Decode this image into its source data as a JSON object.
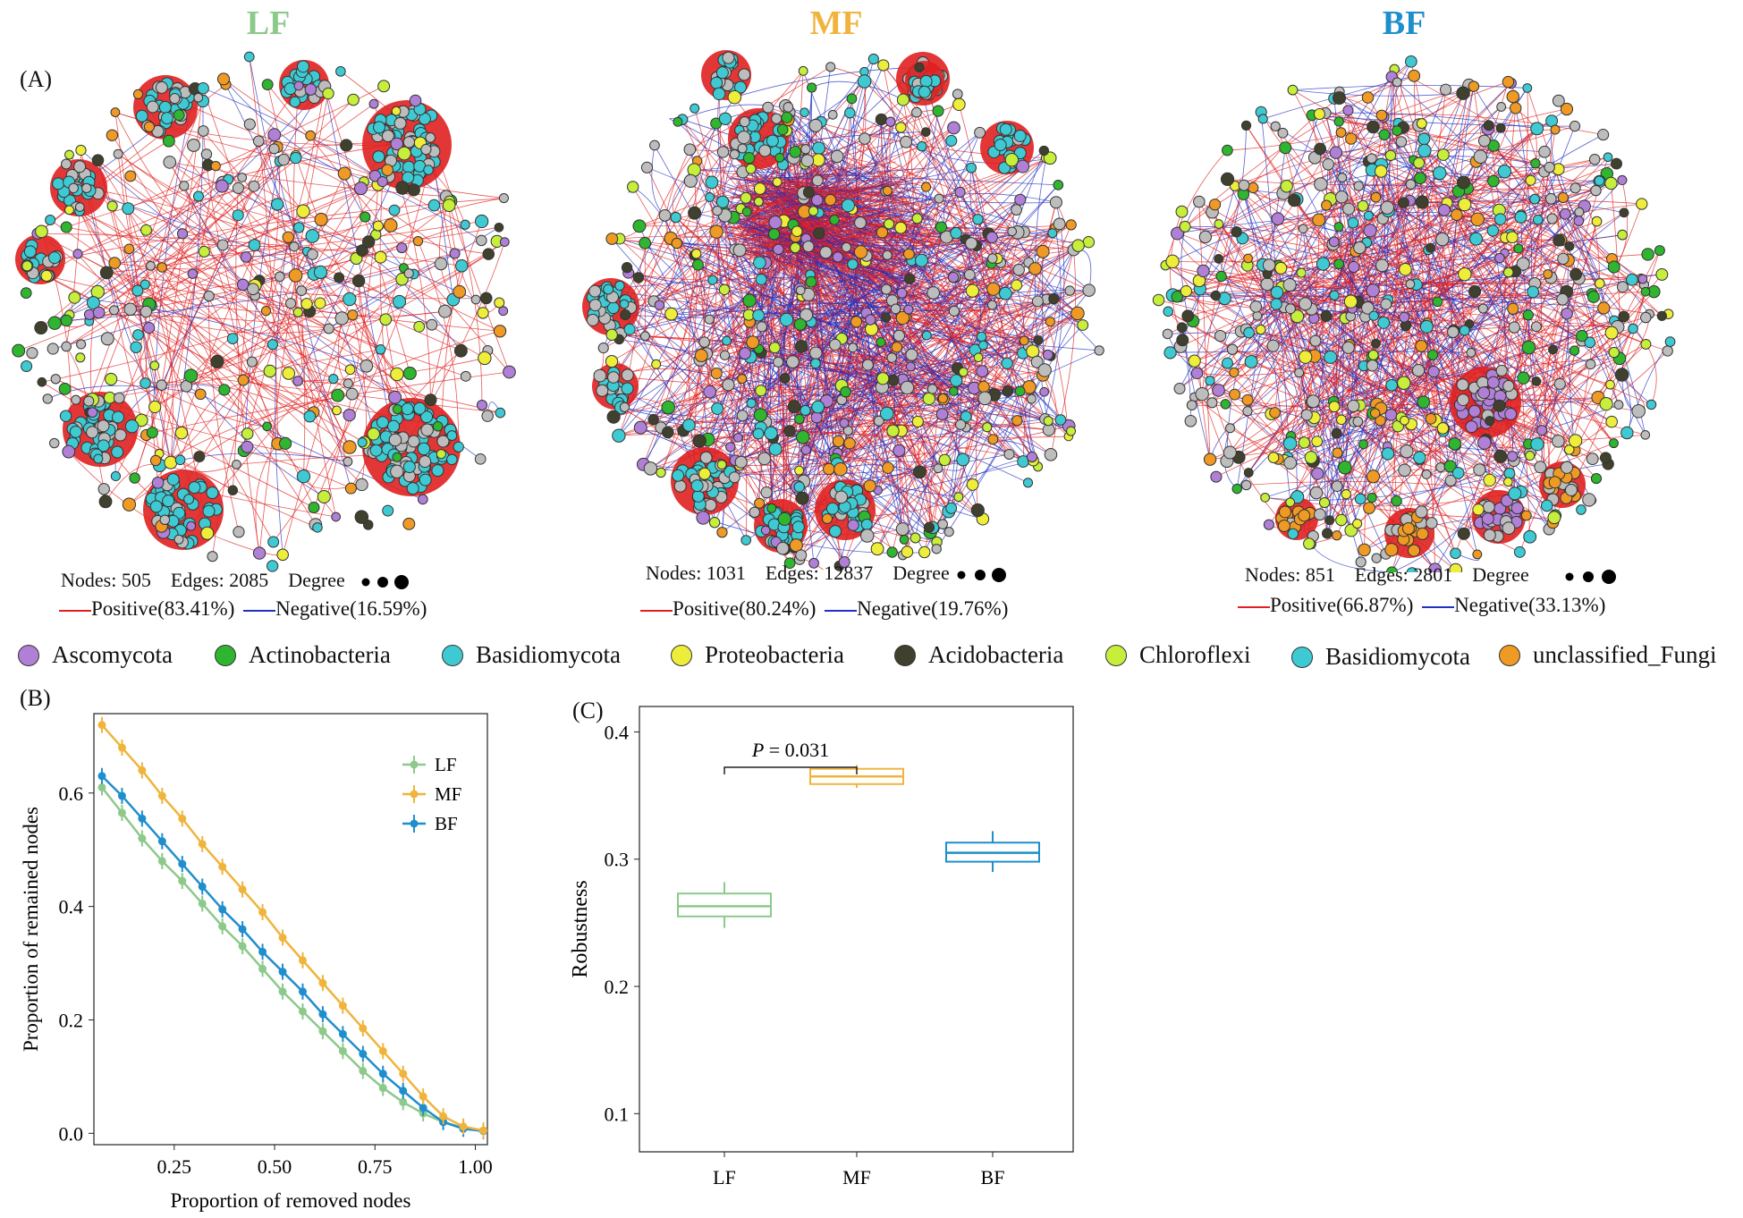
{
  "panels": {
    "a_label": "(A)",
    "b_label": "(B)",
    "c_label": "(C)"
  },
  "colors": {
    "LF": "#8cc98a",
    "MF": "#f0b43c",
    "BF": "#1f8ecd",
    "positive": "#e02020",
    "negative": "#2030c0"
  },
  "networks": [
    {
      "key": "lf",
      "title": "LF",
      "nodes_label": "Nodes: 505",
      "edges_label": "Edges: 2085",
      "degree_label": "Degree",
      "positive_label": "Positive(83.41%)",
      "negative_label": "Negative(16.59%)",
      "nodes": 505,
      "edges": 2085,
      "positive_pct": 83.41,
      "negative_pct": 16.59
    },
    {
      "key": "mf",
      "title": "MF",
      "nodes_label": "Nodes: 1031",
      "edges_label": "Edges: 12837",
      "degree_label": "Degree",
      "positive_label": "Positive(80.24%)",
      "negative_label": "Negative(19.76%)",
      "nodes": 1031,
      "edges": 12837,
      "positive_pct": 80.24,
      "negative_pct": 19.76
    },
    {
      "key": "bf",
      "title": "BF",
      "nodes_label": "Nodes: 851",
      "edges_label": "Edges: 2801",
      "degree_label": "Degree",
      "positive_label": "Positive(66.87%)",
      "negative_label": "Negative(33.13%)",
      "nodes": 851,
      "edges": 2801,
      "positive_pct": 66.87,
      "negative_pct": 33.13
    }
  ],
  "taxa_legend": [
    {
      "label": "Ascomycota",
      "color": "#b07fd6"
    },
    {
      "label": "Actinobacteria",
      "color": "#2fb52f"
    },
    {
      "label": "Basidiomycota",
      "color": "#3fcad3"
    },
    {
      "label": "Proteobacteria",
      "color": "#eeee3a"
    },
    {
      "label": "Acidobacteria",
      "color": "#40402e"
    },
    {
      "label": "Chloroflexi",
      "color": "#c6ee3a"
    },
    {
      "label": "Basidiomycota",
      "color": "#3fcad3"
    },
    {
      "label": "unclassified_Fungi",
      "color": "#ee9a24"
    }
  ],
  "chart_data": [
    {
      "type": "line",
      "xlabel": "Proportion of removed nodes",
      "ylabel": "Proportion of remained nodes",
      "xlim": [
        0.05,
        1.03
      ],
      "ylim": [
        -0.02,
        0.74
      ],
      "xticks": [
        0.25,
        0.5,
        0.75,
        1.0
      ],
      "xtick_labels": [
        "0.25",
        "0.50",
        "0.75",
        "1.00"
      ],
      "yticks": [
        0.0,
        0.2,
        0.4,
        0.6
      ],
      "ytick_labels": [
        "0.0",
        "0.2",
        "0.4",
        "0.6"
      ],
      "legend_position": "top-right",
      "x": [
        0.07,
        0.12,
        0.17,
        0.22,
        0.27,
        0.32,
        0.37,
        0.42,
        0.47,
        0.52,
        0.57,
        0.62,
        0.67,
        0.72,
        0.77,
        0.82,
        0.87,
        0.92,
        0.97,
        1.02
      ],
      "series": [
        {
          "name": "LF",
          "values": [
            0.61,
            0.565,
            0.52,
            0.48,
            0.445,
            0.405,
            0.365,
            0.33,
            0.29,
            0.25,
            0.215,
            0.18,
            0.145,
            0.11,
            0.08,
            0.055,
            0.035,
            0.02,
            0.01,
            0.005
          ]
        },
        {
          "name": "MF",
          "values": [
            0.72,
            0.68,
            0.64,
            0.595,
            0.555,
            0.51,
            0.47,
            0.43,
            0.39,
            0.345,
            0.305,
            0.265,
            0.225,
            0.185,
            0.145,
            0.105,
            0.065,
            0.03,
            0.012,
            0.005
          ]
        },
        {
          "name": "BF",
          "values": [
            0.63,
            0.595,
            0.555,
            0.515,
            0.475,
            0.435,
            0.395,
            0.36,
            0.32,
            0.285,
            0.25,
            0.21,
            0.175,
            0.14,
            0.105,
            0.075,
            0.045,
            0.02,
            0.008,
            0.004
          ]
        }
      ]
    },
    {
      "type": "box",
      "ylabel": "Robustness",
      "categories": [
        "LF",
        "MF",
        "BF"
      ],
      "ylim": [
        0.07,
        0.42
      ],
      "yticks": [
        0.1,
        0.2,
        0.3,
        0.4
      ],
      "ytick_labels": [
        "0.1",
        "0.2",
        "0.3",
        "0.4"
      ],
      "boxes": [
        {
          "name": "LF",
          "min": 0.246,
          "q1": 0.255,
          "median": 0.263,
          "q3": 0.273,
          "max": 0.282
        },
        {
          "name": "MF",
          "min": 0.356,
          "q1": 0.359,
          "median": 0.365,
          "q3": 0.371,
          "max": 0.374
        },
        {
          "name": "BF",
          "min": 0.29,
          "q1": 0.298,
          "median": 0.305,
          "q3": 0.313,
          "max": 0.322
        }
      ],
      "annotation": {
        "text": "P = 0.031",
        "p_symbol": "P",
        "p_value": "= 0.031",
        "between": [
          "LF",
          "MF"
        ]
      }
    }
  ]
}
